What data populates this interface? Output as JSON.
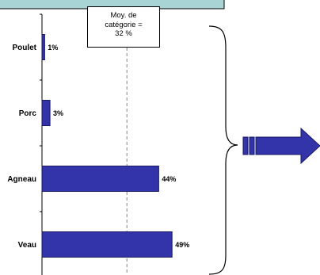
{
  "chart_data": {
    "type": "bar",
    "orientation": "horizontal",
    "categories": [
      "Poulet",
      "Porc",
      "Agneau",
      "Veau"
    ],
    "values": [
      1,
      3,
      44,
      49
    ],
    "value_labels": [
      "1%",
      "3%",
      "44%",
      "49%"
    ],
    "xlim": [
      0,
      50
    ],
    "reference_line": {
      "value": 32,
      "label_lines": [
        "Moy. de",
        "catégorie =",
        "32 %"
      ]
    },
    "colors": {
      "bar": "#3333aa",
      "bar_edge": "#1a1a66",
      "reference_line": "#808080",
      "arrow": "#3333aa",
      "top_panel": "#a8d4d6"
    },
    "icons": [
      "curly-brace",
      "right-arrow"
    ]
  }
}
